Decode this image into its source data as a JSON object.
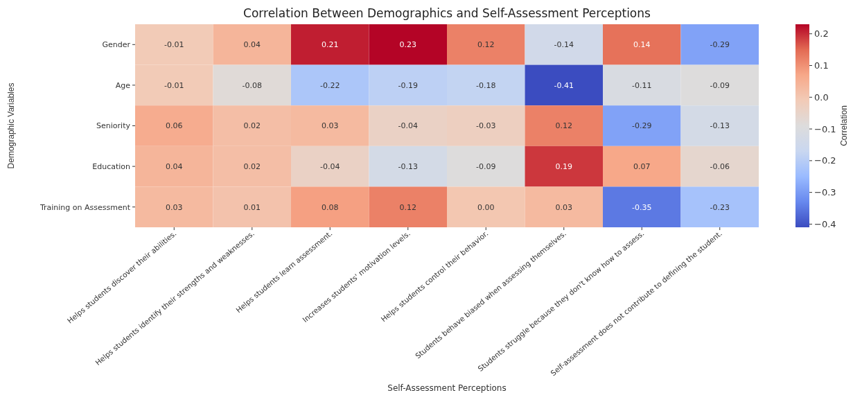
{
  "chart_data": {
    "type": "heatmap",
    "title": "Correlation Between Demographics and Self-Assessment Perceptions",
    "xlabel": "Self-Assessment Perceptions",
    "ylabel": "Demographic Variables",
    "clabel": "Correlation",
    "categories": [
      "Helps students discover their abilities.",
      "Helps students identify their strengths and weaknesses.",
      "Helps students learn assessment.",
      "Increases students' motivation levels.",
      "Helps students control their behavior.",
      "Students behave biased when assessing themselves.",
      "Students struggle because they don't know how to assess.",
      "Self-assessment does not contribute to defining the student."
    ],
    "y_categories": [
      "Gender",
      "Age",
      "Seniority",
      "Education",
      "Training on Assessment"
    ],
    "cells": [
      [
        -0.01,
        0.04,
        0.21,
        0.23,
        0.12,
        -0.14,
        0.14,
        -0.29
      ],
      [
        -0.01,
        -0.08,
        -0.22,
        -0.19,
        -0.18,
        -0.41,
        -0.11,
        -0.09
      ],
      [
        0.06,
        0.02,
        0.03,
        -0.04,
        -0.03,
        0.12,
        -0.29,
        -0.13
      ],
      [
        0.04,
        0.02,
        -0.04,
        -0.13,
        -0.09,
        0.19,
        0.07,
        -0.06
      ],
      [
        0.03,
        0.01,
        0.08,
        0.12,
        0.0,
        0.03,
        -0.35,
        -0.23
      ]
    ],
    "cell_labels": [
      [
        "-0.01",
        "0.04",
        "0.21",
        "0.23",
        "0.12",
        "-0.14",
        "0.14",
        "-0.29"
      ],
      [
        "-0.01",
        "-0.08",
        "-0.22",
        "-0.19",
        "-0.18",
        "-0.41",
        "-0.11",
        "-0.09"
      ],
      [
        "0.06",
        "0.02",
        "0.03",
        "-0.04",
        "-0.03",
        "0.12",
        "-0.29",
        "-0.13"
      ],
      [
        "0.04",
        "0.02",
        "-0.04",
        "-0.13",
        "-0.09",
        "0.19",
        "0.07",
        "-0.06"
      ],
      [
        "0.03",
        "0.01",
        "0.08",
        "0.12",
        "0.00",
        "0.03",
        "-0.35",
        "-0.23"
      ]
    ],
    "clim": [
      -0.41,
      0.23
    ],
    "cticks": [
      {
        "value": -0.4,
        "label": "−0.4"
      },
      {
        "value": -0.3,
        "label": "−0.3"
      },
      {
        "value": -0.2,
        "label": "−0.2"
      },
      {
        "value": -0.1,
        "label": "−0.1"
      },
      {
        "value": 0,
        "label": "0.0"
      },
      {
        "value": 0.1,
        "label": "0.1"
      },
      {
        "value": 0.2,
        "label": "0.2"
      }
    ]
  }
}
